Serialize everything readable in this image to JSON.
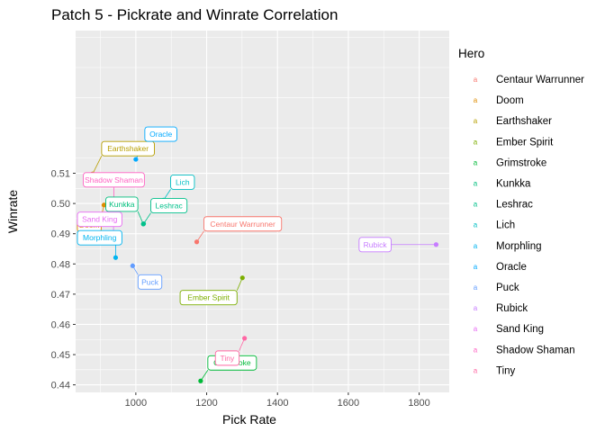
{
  "chart_data": {
    "type": "scatter",
    "title": "Patch 5  - Pickrate and Winrate Correlation",
    "xlabel": "Pick Rate",
    "ylabel": "Winrate",
    "xlim": [
      830,
      1885
    ],
    "ylim": [
      0.4375,
      0.5572
    ],
    "x_ticks": [
      1000,
      1200,
      1400,
      1600,
      1800
    ],
    "y_ticks": [
      0.44,
      0.45,
      0.46,
      0.47,
      0.48,
      0.49,
      0.5,
      0.51
    ],
    "y_tick_labels": [
      "0.44",
      "0.45",
      "0.46",
      "0.47",
      "0.48",
      "0.49",
      "0.50",
      "0.51"
    ],
    "grid": true,
    "legend": {
      "title": "Hero",
      "placement": "right",
      "key_glyph": "a"
    },
    "points": [
      {
        "hero": "Centaur Warrunner",
        "x": 1172,
        "y": 0.4873,
        "color": "#F8766D",
        "label_dir": "up-right"
      },
      {
        "hero": "Doom",
        "x": 910,
        "y": 0.4995,
        "color": "#DE8C00",
        "label_dir": "down-left"
      },
      {
        "hero": "Earthshaker",
        "x": 878,
        "y": 0.5098,
        "color": "#B79F00",
        "label_dir": "right"
      },
      {
        "hero": "Ember Spirit",
        "x": 1301,
        "y": 0.4754,
        "color": "#7CAE00",
        "label_dir": "down-left"
      },
      {
        "hero": "Grimstroke",
        "x": 1183,
        "y": 0.4413,
        "color": "#00BA38",
        "label_dir": "up-right"
      },
      {
        "hero": "Kunkka",
        "x": 1021,
        "y": 0.4932,
        "color": "#00BF7D",
        "label_dir": "up-left"
      },
      {
        "hero": "Leshrac",
        "x": 1022,
        "y": 0.4933,
        "color": "#00C08B",
        "label_dir": "up-right"
      },
      {
        "hero": "Lich",
        "x": 1078,
        "y": 0.5011,
        "color": "#00BFC4",
        "label_dir": "up-right"
      },
      {
        "hero": "Morphling",
        "x": 943,
        "y": 0.4821,
        "color": "#00B4F0",
        "label_dir": "up-left"
      },
      {
        "hero": "Oracle",
        "x": 1000,
        "y": 0.5146,
        "color": "#00A9FF",
        "label_dir": "right"
      },
      {
        "hero": "Puck",
        "x": 991,
        "y": 0.4794,
        "color": "#619CFF",
        "label_dir": "down-right"
      },
      {
        "hero": "Rubick",
        "x": 1848,
        "y": 0.4864,
        "color": "#C77CFF",
        "label_dir": "left"
      },
      {
        "hero": "Sand King",
        "x": 937,
        "y": 0.4882,
        "color": "#E76BF3",
        "label_dir": "up-left"
      },
      {
        "hero": "Shadow Shaman",
        "x": 938,
        "y": 0.5001,
        "color": "#FF61C3",
        "label_dir": "up"
      },
      {
        "hero": "Tiny",
        "x": 1307,
        "y": 0.4554,
        "color": "#FF67A4",
        "label_dir": "down-left"
      }
    ]
  }
}
